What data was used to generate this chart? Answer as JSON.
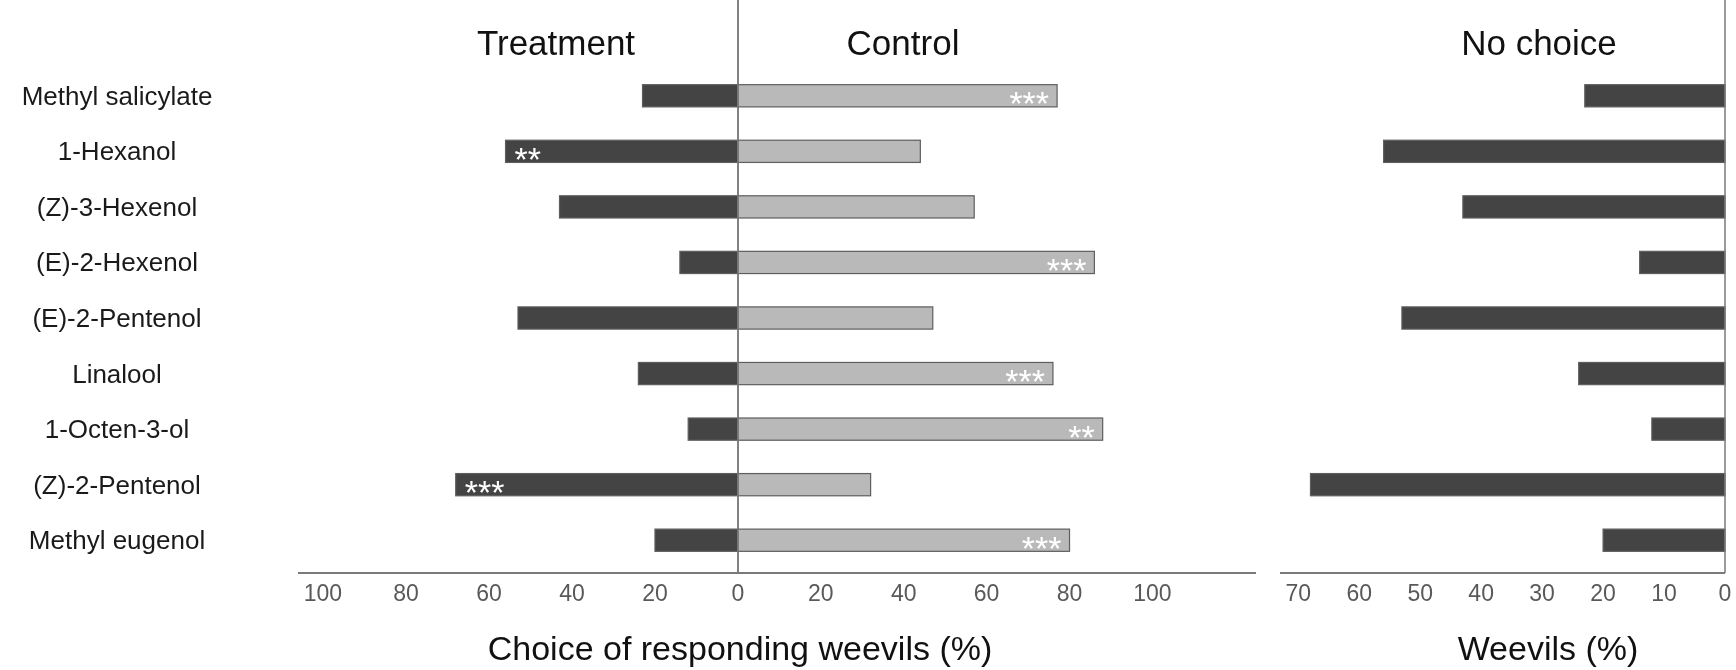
{
  "chart_data": [
    {
      "type": "bar",
      "orientation": "horizontal",
      "title": "Treatment",
      "categories": [
        "Methyl salicylate",
        "1-Hexanol",
        "(Z)-3-Hexenol",
        "(E)-2-Hexenol",
        "(E)-2-Pentenol",
        "Linalool",
        "1-Octen-3-ol",
        "(Z)-2-Pentenol",
        "Methyl eugenol"
      ],
      "values": [
        23,
        56,
        43,
        14,
        53,
        24,
        12,
        68,
        20
      ],
      "color": "#444444",
      "value_labels": [
        null,
        "**",
        null,
        null,
        null,
        null,
        null,
        "***",
        null
      ],
      "xlim": [
        106,
        0
      ],
      "xticks": [
        100,
        80,
        60,
        40,
        20,
        0
      ]
    },
    {
      "type": "bar",
      "orientation": "horizontal",
      "title": "Control",
      "categories": [
        null,
        null,
        null,
        null,
        null,
        null,
        null,
        null,
        null
      ],
      "values": [
        77,
        44,
        57,
        86,
        47,
        76,
        88,
        32,
        80
      ],
      "color": "#b9b9b9",
      "value_labels": [
        "***",
        null,
        null,
        "***",
        null,
        "***",
        "**",
        null,
        "***"
      ],
      "xlabel": "Choice of responding weevils (%)",
      "xlim": [
        0,
        125
      ],
      "xticks": [
        20,
        40,
        60,
        80,
        100
      ]
    },
    {
      "type": "bar",
      "orientation": "horizontal",
      "title": "No choice",
      "categories": [
        null,
        null,
        null,
        null,
        null,
        null,
        null,
        null,
        null
      ],
      "values": [
        23,
        56,
        43,
        14,
        53,
        24,
        12,
        68,
        20
      ],
      "color": "#444444",
      "xlabel": "Weevils (%)",
      "xlim": [
        73,
        0
      ],
      "xticks": [
        70,
        60,
        50,
        40,
        30,
        20,
        10,
        0
      ]
    }
  ]
}
